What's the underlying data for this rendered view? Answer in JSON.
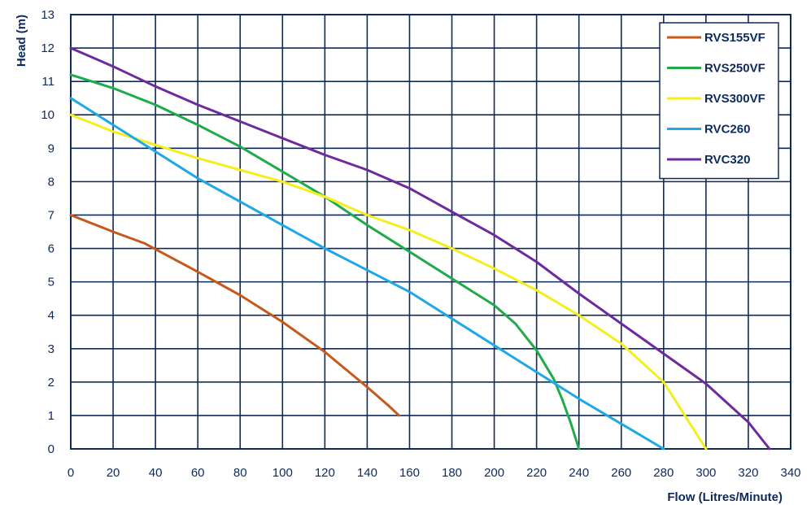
{
  "chart_data": {
    "type": "line",
    "xlabel": "Flow (Litres/Minute)",
    "ylabel": "Head (m)",
    "xlim": [
      0,
      340
    ],
    "ylim": [
      0,
      13
    ],
    "x_ticks": [
      "0",
      "20",
      "40",
      "60",
      "80",
      "100",
      "120",
      "140",
      "160",
      "180",
      "200",
      "220",
      "240",
      "260",
      "280",
      "300",
      "320",
      "340"
    ],
    "y_ticks": [
      "0",
      "1",
      "2",
      "3",
      "4",
      "5",
      "6",
      "7",
      "8",
      "9",
      "10",
      "11",
      "12",
      "13"
    ],
    "grid": true,
    "legend_position": "top-right",
    "colors": {
      "axis": "#0d2a5c",
      "grid": "#0d2a5c"
    },
    "series": [
      {
        "name": "RVS155VF",
        "color": "#c8581a",
        "points": [
          [
            0,
            7
          ],
          [
            20,
            6.5
          ],
          [
            35,
            6.15
          ],
          [
            60,
            5.3
          ],
          [
            80,
            4.6
          ],
          [
            100,
            3.8
          ],
          [
            120,
            2.9
          ],
          [
            140,
            1.85
          ],
          [
            150,
            1.3
          ],
          [
            155,
            1
          ]
        ]
      },
      {
        "name": "RVS250VF",
        "color": "#1fab4a",
        "points": [
          [
            0,
            11.2
          ],
          [
            20,
            10.8
          ],
          [
            40,
            10.3
          ],
          [
            60,
            9.7
          ],
          [
            80,
            9.05
          ],
          [
            100,
            8.3
          ],
          [
            120,
            7.55
          ],
          [
            140,
            6.7
          ],
          [
            160,
            5.9
          ],
          [
            180,
            5.1
          ],
          [
            200,
            4.3
          ],
          [
            210,
            3.75
          ],
          [
            220,
            2.95
          ],
          [
            228,
            2.1
          ],
          [
            232,
            1.5
          ],
          [
            236,
            0.8
          ],
          [
            240,
            0
          ]
        ]
      },
      {
        "name": "RVS300VF",
        "color": "#f4ee1e",
        "points": [
          [
            0,
            10
          ],
          [
            20,
            9.5
          ],
          [
            40,
            9.1
          ],
          [
            60,
            8.7
          ],
          [
            80,
            8.35
          ],
          [
            100,
            8
          ],
          [
            120,
            7.55
          ],
          [
            140,
            7
          ],
          [
            160,
            6.55
          ],
          [
            180,
            6
          ],
          [
            200,
            5.4
          ],
          [
            220,
            4.75
          ],
          [
            240,
            4
          ],
          [
            260,
            3.15
          ],
          [
            280,
            2
          ],
          [
            290,
            1
          ],
          [
            300,
            0
          ]
        ]
      },
      {
        "name": "RVC260",
        "color": "#1ea8e8",
        "points": [
          [
            0,
            10.5
          ],
          [
            20,
            9.7
          ],
          [
            40,
            8.9
          ],
          [
            60,
            8.1
          ],
          [
            80,
            7.4
          ],
          [
            100,
            6.7
          ],
          [
            120,
            6
          ],
          [
            140,
            5.35
          ],
          [
            160,
            4.7
          ],
          [
            180,
            3.9
          ],
          [
            200,
            3.1
          ],
          [
            220,
            2.3
          ],
          [
            240,
            1.5
          ],
          [
            260,
            0.75
          ],
          [
            280,
            0
          ]
        ]
      },
      {
        "name": "RVC320",
        "color": "#6d2a9e",
        "points": [
          [
            0,
            12
          ],
          [
            20,
            11.45
          ],
          [
            40,
            10.85
          ],
          [
            60,
            10.3
          ],
          [
            80,
            9.8
          ],
          [
            100,
            9.3
          ],
          [
            120,
            8.8
          ],
          [
            140,
            8.35
          ],
          [
            160,
            7.8
          ],
          [
            180,
            7.1
          ],
          [
            200,
            6.4
          ],
          [
            220,
            5.6
          ],
          [
            240,
            4.65
          ],
          [
            260,
            3.75
          ],
          [
            280,
            2.85
          ],
          [
            300,
            1.95
          ],
          [
            320,
            0.8
          ],
          [
            330,
            0
          ]
        ]
      }
    ]
  }
}
